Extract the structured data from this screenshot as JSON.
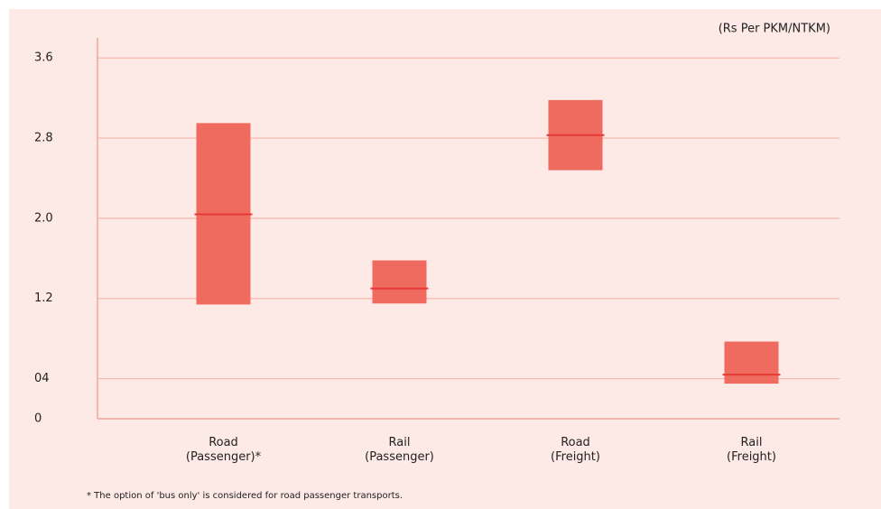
{
  "chart_data": {
    "type": "range",
    "unit_label": "(Rs Per PKM/NTKM)",
    "footnote": "* The option of 'bus only' is considered for road passenger transports.",
    "categories": [
      "Road (Passenger)*",
      "Rail (Passenger)",
      "Road (Freight)",
      "Rail (Freight)"
    ],
    "low": [
      1.14,
      1.15,
      2.48,
      0.35
    ],
    "high": [
      2.95,
      1.58,
      3.18,
      0.77
    ],
    "median": [
      2.04,
      1.3,
      2.83,
      0.44
    ],
    "color": "#ef6a5f",
    "median_color": "#e63a36",
    "ylim": [
      0,
      3.8
    ],
    "yticks": [
      0,
      {
        "value": 0.4,
        "label": "04"
      },
      1.2,
      {
        "value": 2,
        "label": "2.0"
      },
      2.8,
      3.6
    ],
    "grid": true
  }
}
